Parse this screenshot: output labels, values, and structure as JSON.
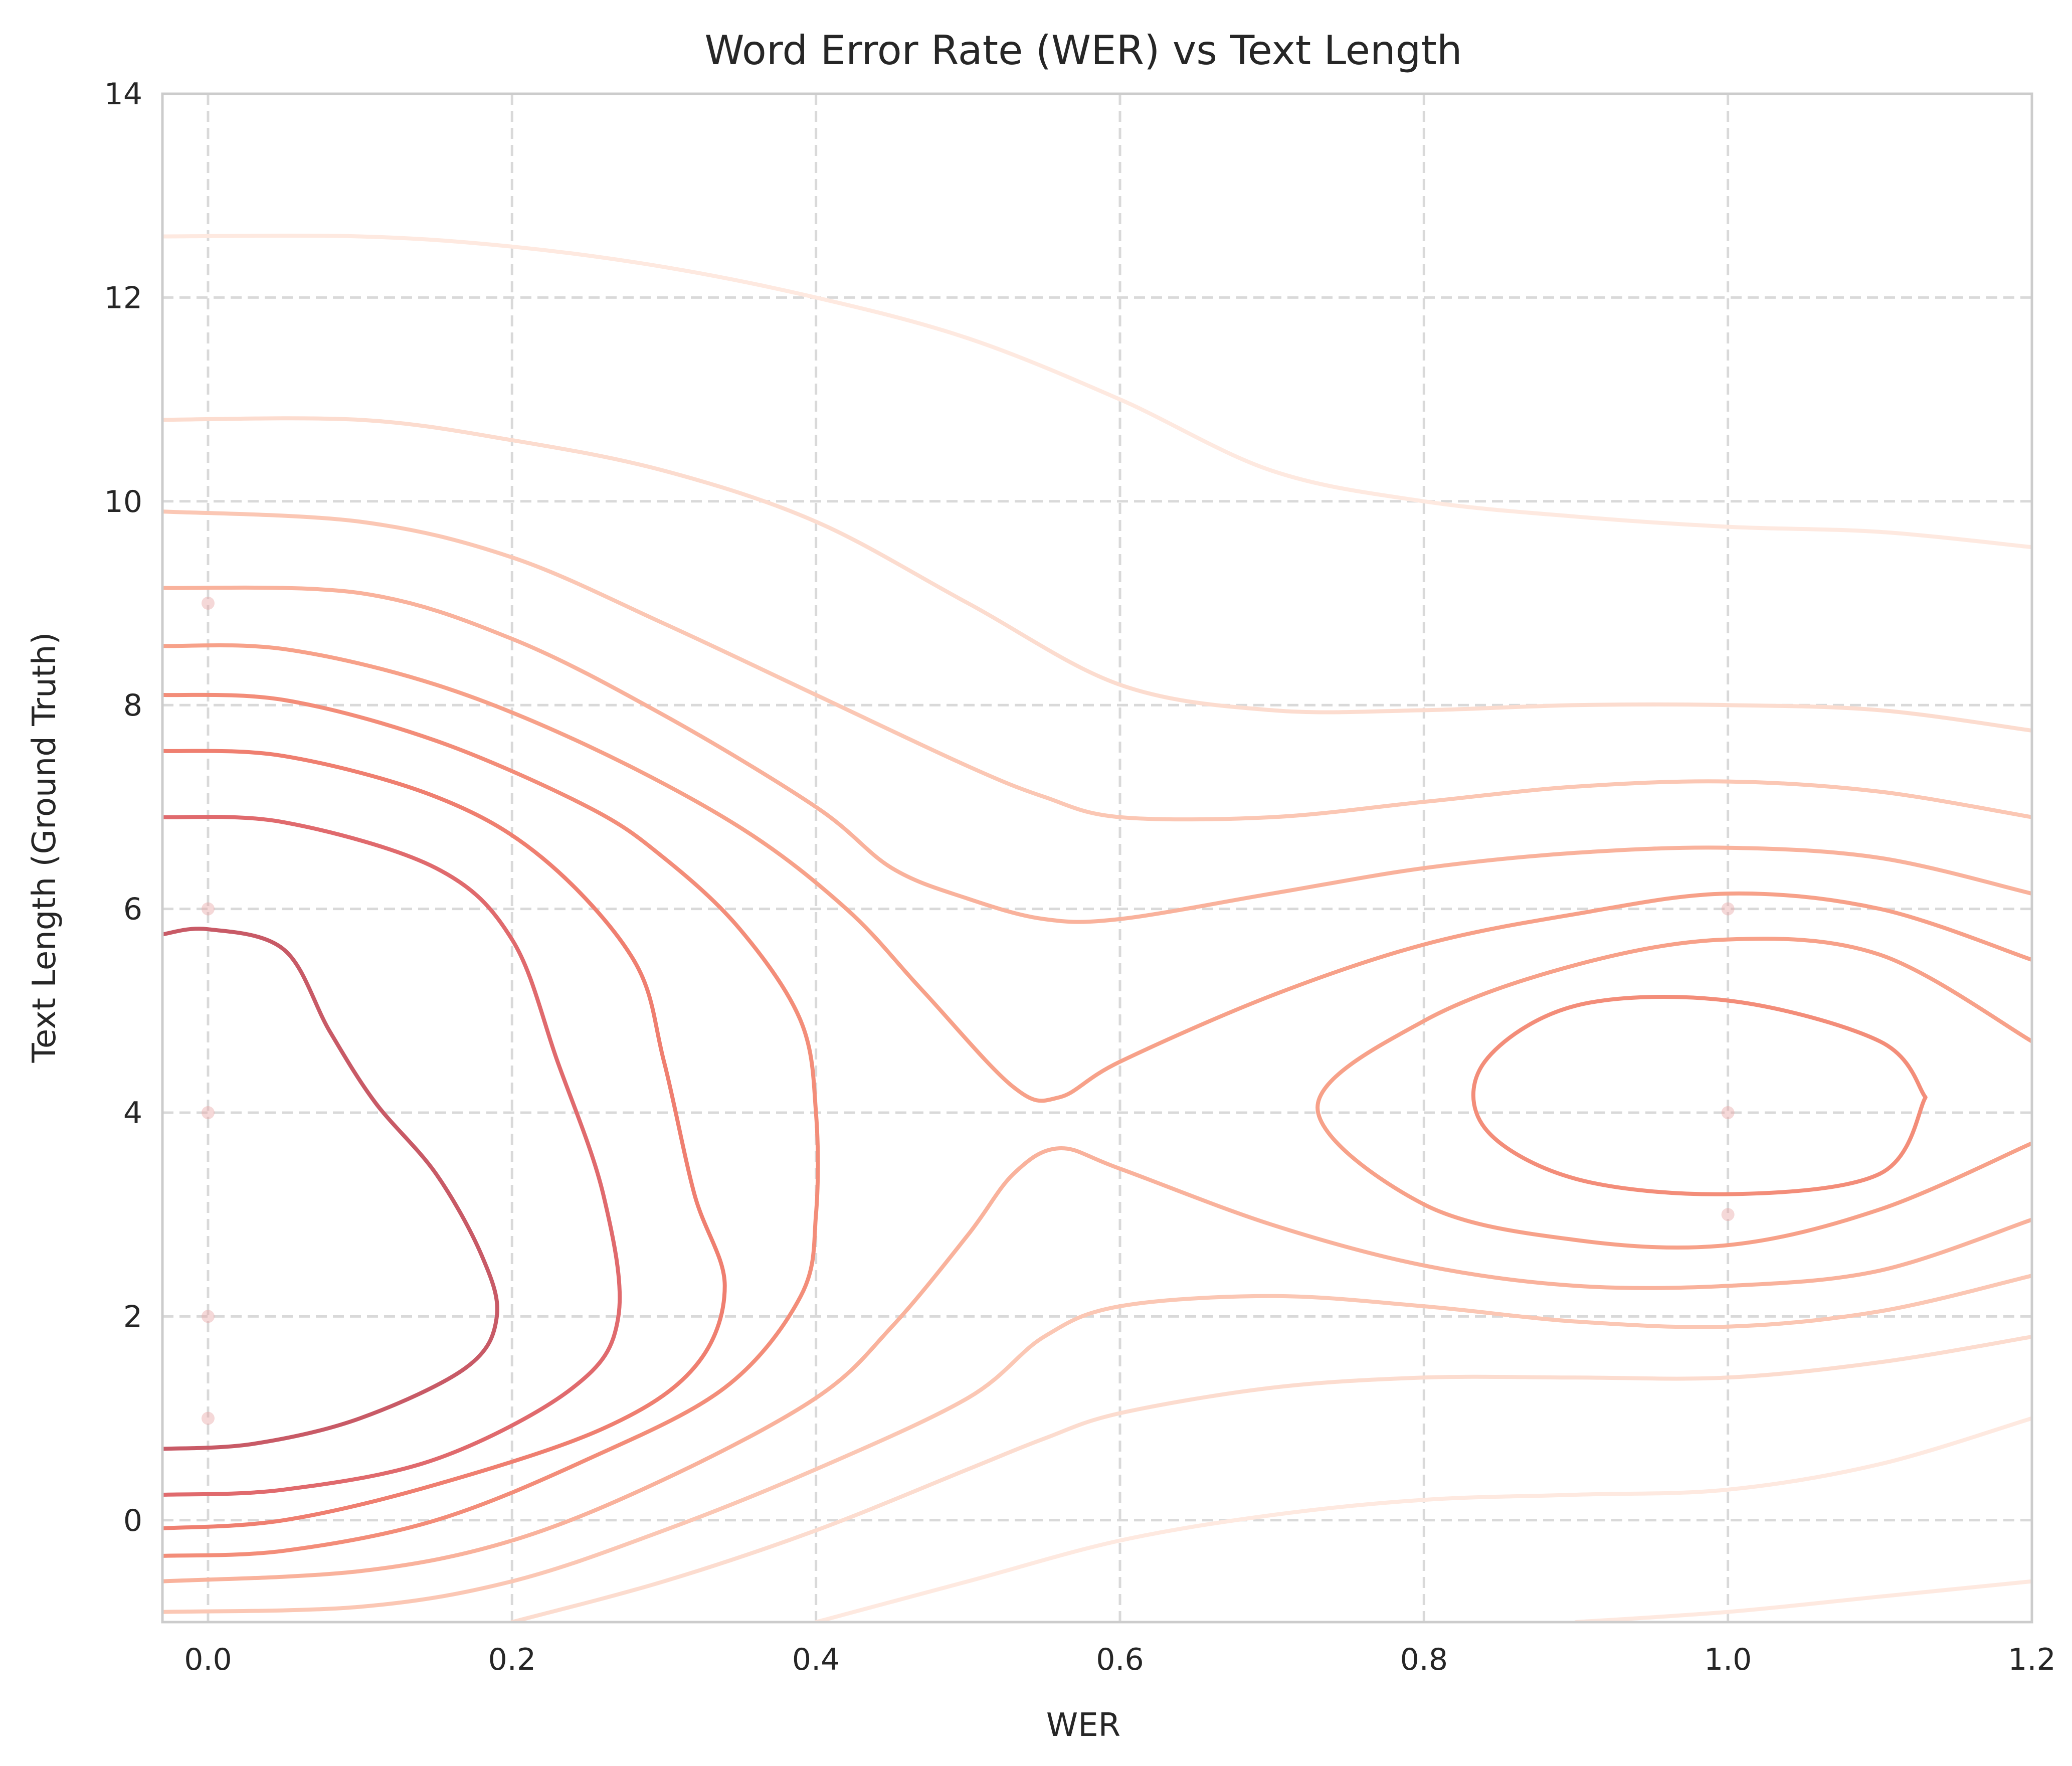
{
  "chart_data": {
    "type": "kde-contour",
    "title": "Word Error Rate (WER) vs Text Length",
    "xlabel": "WER",
    "ylabel": "Text Length (Ground Truth)",
    "xlim": [
      -0.03,
      1.2
    ],
    "ylim": [
      -1,
      14
    ],
    "x_ticks": [
      0.0,
      0.2,
      0.4,
      0.6,
      0.8,
      1.0,
      1.2
    ],
    "x_tick_labels": [
      "0.0",
      "0.2",
      "0.4",
      "0.6",
      "0.8",
      "1.0",
      "1.2"
    ],
    "y_ticks": [
      0,
      2,
      4,
      6,
      8,
      10,
      12,
      14
    ],
    "y_tick_labels": [
      "0",
      "2",
      "4",
      "6",
      "8",
      "10",
      "12",
      "14"
    ],
    "grid": true,
    "colormap": "Reds",
    "points": [
      {
        "x": 0.0,
        "y": 9
      },
      {
        "x": 0.0,
        "y": 6
      },
      {
        "x": 0.0,
        "y": 4
      },
      {
        "x": 0.0,
        "y": 2
      },
      {
        "x": 0.0,
        "y": 1
      },
      {
        "x": 1.0,
        "y": 6
      },
      {
        "x": 1.0,
        "y": 4
      },
      {
        "x": 1.0,
        "y": 3
      }
    ],
    "contours": [
      {
        "level": 1,
        "color": "#fee9e0",
        "paths": [
          [
            [
              -0.03,
              12.6
            ],
            [
              0.1,
              12.6
            ],
            [
              0.2,
              12.5
            ],
            [
              0.3,
              12.3
            ],
            [
              0.4,
              12.0
            ],
            [
              0.5,
              11.6
            ],
            [
              0.6,
              11.0
            ],
            [
              0.7,
              10.3
            ],
            [
              0.8,
              10.0
            ],
            [
              0.9,
              9.85
            ],
            [
              1.0,
              9.75
            ],
            [
              1.1,
              9.7
            ],
            [
              1.2,
              9.55
            ]
          ],
          [
            [
              0.4,
              -1.0
            ],
            [
              0.5,
              -0.6
            ],
            [
              0.6,
              -0.2
            ],
            [
              0.7,
              0.05
            ],
            [
              0.8,
              0.2
            ],
            [
              0.9,
              0.25
            ],
            [
              1.0,
              0.3
            ],
            [
              1.1,
              0.55
            ],
            [
              1.2,
              1.0
            ]
          ],
          [
            [
              0.9,
              -1.0
            ],
            [
              1.0,
              -0.9
            ],
            [
              1.1,
              -0.75
            ],
            [
              1.2,
              -0.6
            ]
          ]
        ]
      },
      {
        "level": 2,
        "color": "#fcdccf",
        "paths": [
          [
            [
              -0.03,
              10.8
            ],
            [
              0.1,
              10.8
            ],
            [
              0.2,
              10.6
            ],
            [
              0.3,
              10.3
            ],
            [
              0.4,
              9.8
            ],
            [
              0.5,
              9.0
            ],
            [
              0.6,
              8.2
            ],
            [
              0.7,
              7.95
            ],
            [
              0.8,
              7.95
            ],
            [
              0.9,
              8.0
            ],
            [
              1.0,
              8.0
            ],
            [
              1.1,
              7.95
            ],
            [
              1.2,
              7.75
            ]
          ],
          [
            [
              0.2,
              -1.0
            ],
            [
              0.3,
              -0.6
            ],
            [
              0.4,
              -0.1
            ],
            [
              0.5,
              0.5
            ],
            [
              0.55,
              0.8
            ],
            [
              0.6,
              1.05
            ],
            [
              0.7,
              1.3
            ],
            [
              0.8,
              1.4
            ],
            [
              0.9,
              1.4
            ],
            [
              1.0,
              1.4
            ],
            [
              1.1,
              1.55
            ],
            [
              1.2,
              1.8
            ]
          ]
        ]
      },
      {
        "level": 3,
        "color": "#fbc7b4",
        "paths": [
          [
            [
              -0.03,
              9.9
            ],
            [
              0.1,
              9.8
            ],
            [
              0.2,
              9.45
            ],
            [
              0.3,
              8.8
            ],
            [
              0.4,
              8.1
            ],
            [
              0.5,
              7.4
            ],
            [
              0.55,
              7.1
            ],
            [
              0.6,
              6.9
            ],
            [
              0.7,
              6.9
            ],
            [
              0.8,
              7.05
            ],
            [
              0.9,
              7.2
            ],
            [
              1.0,
              7.25
            ],
            [
              1.1,
              7.15
            ],
            [
              1.2,
              6.9
            ]
          ],
          [
            [
              -0.03,
              -0.9
            ],
            [
              0.1,
              -0.85
            ],
            [
              0.2,
              -0.6
            ],
            [
              0.3,
              -0.1
            ],
            [
              0.4,
              0.5
            ],
            [
              0.5,
              1.2
            ],
            [
              0.55,
              1.8
            ],
            [
              0.6,
              2.1
            ],
            [
              0.7,
              2.2
            ],
            [
              0.8,
              2.1
            ],
            [
              0.9,
              1.95
            ],
            [
              1.0,
              1.9
            ],
            [
              1.1,
              2.05
            ],
            [
              1.2,
              2.4
            ]
          ]
        ]
      },
      {
        "level": 4,
        "color": "#f9b29c",
        "paths": [
          [
            [
              -0.03,
              9.15
            ],
            [
              0.1,
              9.1
            ],
            [
              0.2,
              8.65
            ],
            [
              0.3,
              7.9
            ],
            [
              0.4,
              7.0
            ],
            [
              0.45,
              6.4
            ],
            [
              0.5,
              6.1
            ],
            [
              0.55,
              5.9
            ],
            [
              0.6,
              5.9
            ],
            [
              0.7,
              6.15
            ],
            [
              0.8,
              6.4
            ],
            [
              0.9,
              6.55
            ],
            [
              1.0,
              6.6
            ],
            [
              1.1,
              6.5
            ],
            [
              1.2,
              6.15
            ]
          ],
          [
            [
              -0.03,
              -0.6
            ],
            [
              0.1,
              -0.5
            ],
            [
              0.2,
              -0.2
            ],
            [
              0.3,
              0.4
            ],
            [
              0.4,
              1.2
            ],
            [
              0.45,
              1.9
            ],
            [
              0.5,
              2.8
            ],
            [
              0.53,
              3.4
            ],
            [
              0.56,
              3.65
            ],
            [
              0.6,
              3.45
            ],
            [
              0.7,
              2.9
            ],
            [
              0.8,
              2.5
            ],
            [
              0.9,
              2.3
            ],
            [
              1.0,
              2.3
            ],
            [
              1.1,
              2.45
            ],
            [
              1.2,
              2.95
            ]
          ]
        ]
      },
      {
        "level": 5,
        "color": "#f7a189",
        "paths": [
          [
            [
              -0.03,
              8.58
            ],
            [
              0.05,
              8.55
            ],
            [
              0.15,
              8.2
            ],
            [
              0.25,
              7.6
            ],
            [
              0.35,
              6.8
            ],
            [
              0.42,
              6.0
            ],
            [
              0.47,
              5.2
            ],
            [
              0.53,
              4.25
            ],
            [
              0.56,
              4.15
            ],
            [
              0.6,
              4.5
            ],
            [
              0.7,
              5.15
            ],
            [
              0.8,
              5.65
            ],
            [
              0.9,
              5.95
            ],
            [
              1.0,
              6.15
            ],
            [
              1.1,
              6.0
            ],
            [
              1.2,
              5.5
            ]
          ],
          [
            [
              1.2,
              3.7
            ],
            [
              1.1,
              3.05
            ],
            [
              1.0,
              2.7
            ],
            [
              0.9,
              2.75
            ],
            [
              0.8,
              3.1
            ],
            [
              0.73,
              4.05
            ],
            [
              0.8,
              4.9
            ],
            [
              0.9,
              5.45
            ],
            [
              1.0,
              5.7
            ],
            [
              1.1,
              5.55
            ],
            [
              1.2,
              4.7
            ]
          ]
        ]
      },
      {
        "level": 6,
        "color": "#f38d79",
        "paths": [
          [
            [
              -0.03,
              8.1
            ],
            [
              0.05,
              8.05
            ],
            [
              0.15,
              7.65
            ],
            [
              0.25,
              7.0
            ],
            [
              0.3,
              6.5
            ],
            [
              0.35,
              5.8
            ],
            [
              0.39,
              4.9
            ],
            [
              0.4,
              4.0
            ],
            [
              0.4,
              3.0
            ],
            [
              0.39,
              2.2
            ],
            [
              0.34,
              1.3
            ],
            [
              0.25,
              0.6
            ],
            [
              0.15,
              0.0
            ],
            [
              0.05,
              -0.3
            ],
            [
              -0.03,
              -0.35
            ]
          ],
          [
            [
              1.13,
              4.15
            ],
            [
              1.1,
              4.7
            ],
            [
              1.0,
              5.1
            ],
            [
              0.9,
              5.05
            ],
            [
              0.84,
              4.5
            ],
            [
              0.84,
              3.85
            ],
            [
              0.9,
              3.35
            ],
            [
              1.0,
              3.2
            ],
            [
              1.1,
              3.4
            ],
            [
              1.13,
              4.15
            ]
          ]
        ]
      },
      {
        "level": 7,
        "color": "#ef7f70",
        "paths": [
          [
            [
              -0.03,
              7.55
            ],
            [
              0.05,
              7.5
            ],
            [
              0.15,
              7.1
            ],
            [
              0.22,
              6.5
            ],
            [
              0.28,
              5.5
            ],
            [
              0.3,
              4.5
            ],
            [
              0.32,
              3.2
            ],
            [
              0.34,
              2.3
            ],
            [
              0.32,
              1.5
            ],
            [
              0.26,
              0.9
            ],
            [
              0.15,
              0.35
            ],
            [
              0.05,
              0.0
            ],
            [
              -0.03,
              -0.08
            ]
          ]
        ]
      },
      {
        "level": 8,
        "color": "#e06a6d",
        "paths": [
          [
            [
              -0.03,
              6.9
            ],
            [
              0.05,
              6.85
            ],
            [
              0.15,
              6.4
            ],
            [
              0.2,
              5.7
            ],
            [
              0.23,
              4.5
            ],
            [
              0.26,
              3.2
            ],
            [
              0.27,
              2.0
            ],
            [
              0.24,
              1.3
            ],
            [
              0.15,
              0.6
            ],
            [
              0.05,
              0.3
            ],
            [
              -0.03,
              0.25
            ]
          ]
        ]
      },
      {
        "level": 9,
        "color": "#c85a66",
        "paths": [
          [
            [
              -0.03,
              5.75
            ],
            [
              0.0,
              5.8
            ],
            [
              0.05,
              5.6
            ],
            [
              0.08,
              4.8
            ],
            [
              0.11,
              4.1
            ],
            [
              0.15,
              3.4
            ],
            [
              0.18,
              2.6
            ],
            [
              0.19,
              2.0
            ],
            [
              0.17,
              1.5
            ],
            [
              0.1,
              1.0
            ],
            [
              0.03,
              0.75
            ],
            [
              -0.03,
              0.7
            ]
          ]
        ]
      }
    ]
  }
}
